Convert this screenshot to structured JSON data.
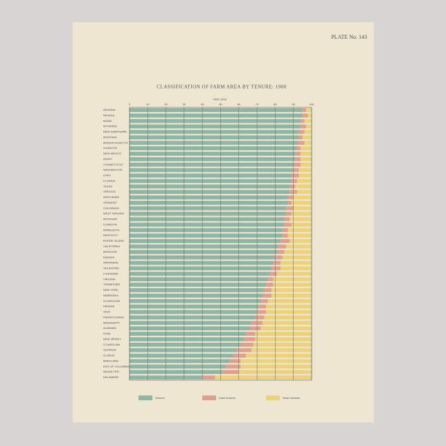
{
  "plate": "PLATE No. 143",
  "chart_data": {
    "type": "stacked-barh",
    "title": "CLASSIFICATION OF FARM AREA BY TENURE: 1900",
    "xlabel": "PER CENT",
    "xlim": [
      0,
      100
    ],
    "xticks": [
      0,
      10,
      20,
      30,
      40,
      50,
      60,
      70,
      80,
      90,
      100
    ],
    "grid": true,
    "categories": [
      "ARIZONA",
      "NEVADA",
      "MAINE",
      "WYOMING",
      "NEW HAMPSHIRE",
      "MONTANA",
      "MASSACHUSETTS",
      "N.DAKOTA",
      "NEW MEXICO",
      "IDAHO",
      "CONNECTICUT",
      "WASHINGTON",
      "UTAH",
      "FLORIDA",
      "TEXAS",
      "OREGON",
      "WISCONSIN",
      "VERMONT",
      "COLORADO",
      "WEST VIRGINIA",
      "MICHIGAN",
      "S.DAKOTA",
      "MINNESOTA",
      "KENTUCKY",
      "RHODE ISLAND",
      "CALIFORNIA",
      "MISSOURI",
      "KANSAS",
      "ARKANSAS",
      "OKLAHOMA",
      "LOUISIANA",
      "VIRGINIA",
      "TENNESSEE",
      "NEW YORK",
      "NEBRASKA",
      "N.CAROLINA",
      "INDIANA",
      "OHIO",
      "PENNSYLVANIA",
      "MISSISSIPPI",
      "ALABAMA",
      "IOWA",
      "NEW JERSEY",
      "S.CAROLINA",
      "GEORGIA",
      "ILLINOIS",
      "MARYLAND",
      "DIST.OF COLUMBIA",
      "INDIAN TER.",
      "DELAWARE"
    ],
    "series": [
      {
        "name": "Owners",
        "color": "#8fb6a4",
        "values": [
          95,
          95,
          94,
          94,
          93,
          93,
          92,
          92,
          91,
          91,
          90,
          90,
          89,
          89,
          88,
          88,
          87,
          87,
          86,
          86,
          85,
          85,
          84,
          84,
          83,
          82,
          81,
          80,
          79,
          78,
          77,
          76,
          75,
          74,
          73,
          72,
          71,
          70,
          69,
          67,
          66,
          64,
          63,
          61,
          59,
          57,
          55,
          53,
          51,
          40
        ]
      },
      {
        "name": "Cash tenants",
        "color": "#dea18f",
        "values": [
          2,
          3,
          2,
          3,
          3,
          2,
          4,
          2,
          3,
          3,
          4,
          3,
          4,
          3,
          3,
          4,
          3,
          2,
          4,
          3,
          3,
          4,
          3,
          3,
          5,
          4,
          4,
          4,
          4,
          5,
          4,
          3,
          4,
          4,
          5,
          4,
          4,
          5,
          5,
          6,
          6,
          5,
          6,
          7,
          8,
          7,
          6,
          8,
          9,
          7
        ]
      },
      {
        "name": "Share tenants",
        "color": "#ecd27b",
        "values": [
          3,
          2,
          4,
          3,
          4,
          5,
          4,
          6,
          6,
          6,
          6,
          7,
          7,
          8,
          9,
          8,
          10,
          11,
          10,
          11,
          12,
          11,
          13,
          13,
          12,
          14,
          15,
          16,
          17,
          17,
          19,
          21,
          21,
          22,
          22,
          24,
          25,
          25,
          26,
          27,
          28,
          31,
          31,
          32,
          33,
          36,
          39,
          39,
          40,
          53
        ]
      }
    ]
  }
}
